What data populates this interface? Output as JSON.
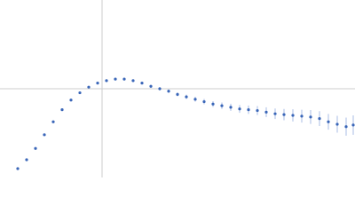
{
  "chart_data": {
    "type": "scatter",
    "x": [
      0.3,
      0.45,
      0.6,
      0.75,
      0.9,
      1.05,
      1.2,
      1.35,
      1.5,
      1.65,
      1.8,
      1.95,
      2.1,
      2.25,
      2.4,
      2.55,
      2.7,
      2.85,
      3.0,
      3.15,
      3.3,
      3.45,
      3.6,
      3.75,
      3.9,
      4.05,
      4.2,
      4.35,
      4.5,
      4.65,
      4.8,
      4.95,
      5.1,
      5.25,
      5.4,
      5.55,
      5.7,
      5.85,
      5.97
    ],
    "values": [
      0.11,
      0.22,
      0.36,
      0.53,
      0.69,
      0.84,
      0.96,
      1.05,
      1.12,
      1.17,
      1.2,
      1.22,
      1.22,
      1.2,
      1.17,
      1.13,
      1.1,
      1.07,
      1.03,
      1.0,
      0.97,
      0.94,
      0.91,
      0.89,
      0.87,
      0.85,
      0.84,
      0.83,
      0.81,
      0.79,
      0.78,
      0.77,
      0.76,
      0.75,
      0.73,
      0.69,
      0.66,
      0.63,
      0.65
    ],
    "errors": [
      0.005,
      0.005,
      0.005,
      0.006,
      0.006,
      0.007,
      0.007,
      0.008,
      0.008,
      0.009,
      0.01,
      0.011,
      0.012,
      0.013,
      0.015,
      0.017,
      0.019,
      0.021,
      0.024,
      0.027,
      0.03,
      0.033,
      0.036,
      0.04,
      0.044,
      0.048,
      0.052,
      0.056,
      0.06,
      0.065,
      0.07,
      0.075,
      0.08,
      0.086,
      0.092,
      0.098,
      0.105,
      0.112,
      0.12
    ],
    "color": "#3a66b8",
    "error_color": "#a9bde6",
    "ref_color": "#cccccc",
    "xlim": [
      0,
      6
    ],
    "ylim": [
      0,
      2.2
    ],
    "xref": 1.725,
    "yref": 1.1
  }
}
